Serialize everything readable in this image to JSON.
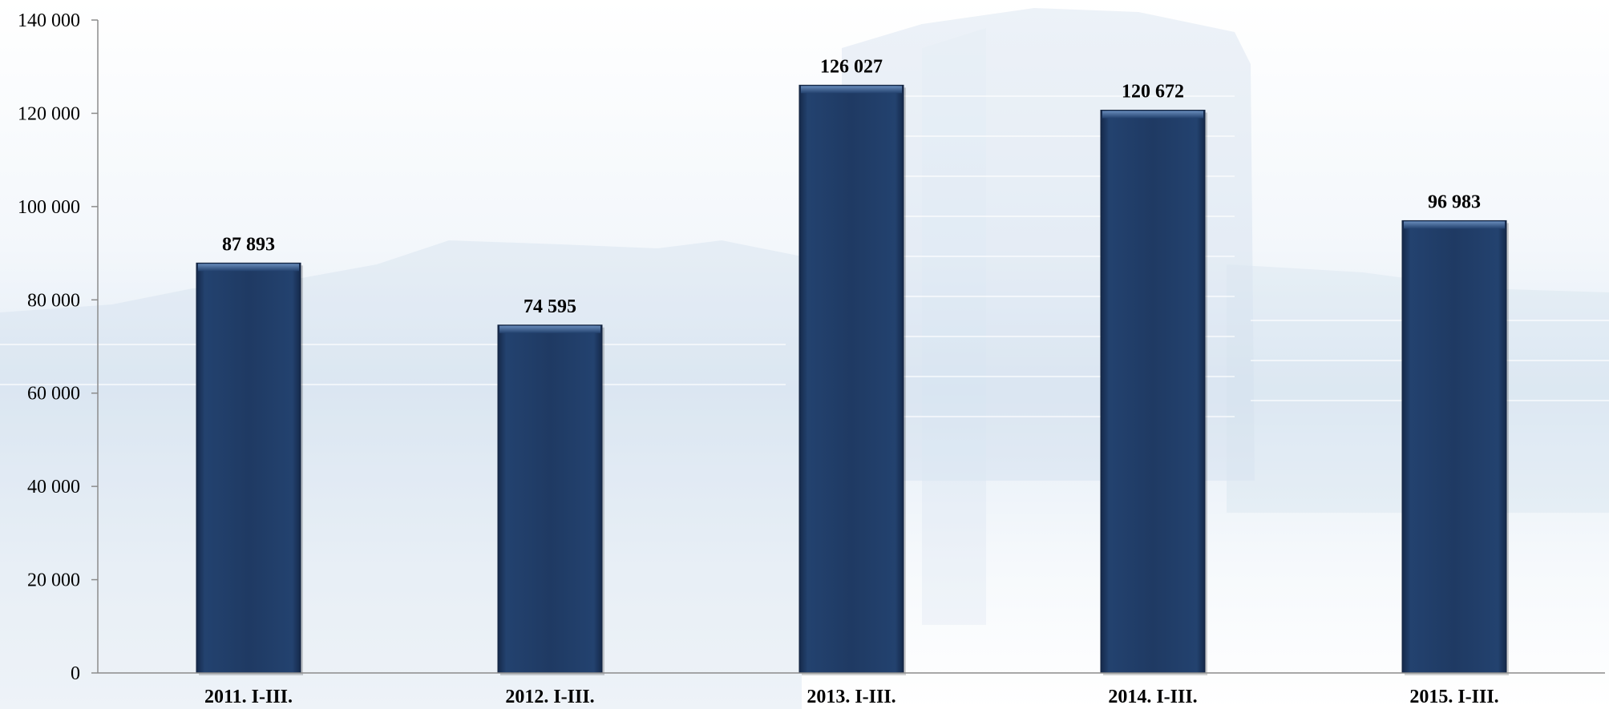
{
  "chart_data": {
    "type": "bar",
    "categories": [
      "2011. I-III.",
      "2012. I-III.",
      "2013. I-III.",
      "2014. I-III.",
      "2015. I-III."
    ],
    "values": [
      87893,
      74595,
      126027,
      120672,
      96983
    ],
    "value_labels": [
      "87 893",
      "74 595",
      "126 027",
      "120 672",
      "96 983"
    ],
    "ylim": [
      0,
      140000
    ],
    "y_ticks": [
      0,
      20000,
      40000,
      60000,
      80000,
      100000,
      120000,
      140000
    ],
    "y_tick_labels": [
      "0",
      "20 000",
      "40 000",
      "60 000",
      "80 000",
      "100 000",
      "120 000",
      "140 000"
    ],
    "grid": false,
    "legend": "none",
    "colors": {
      "bar": "#1f3a63",
      "bar_highlight": "#3f6aa0",
      "axis": "#8c8c8c",
      "background_tint": "#c9d9ea"
    }
  }
}
